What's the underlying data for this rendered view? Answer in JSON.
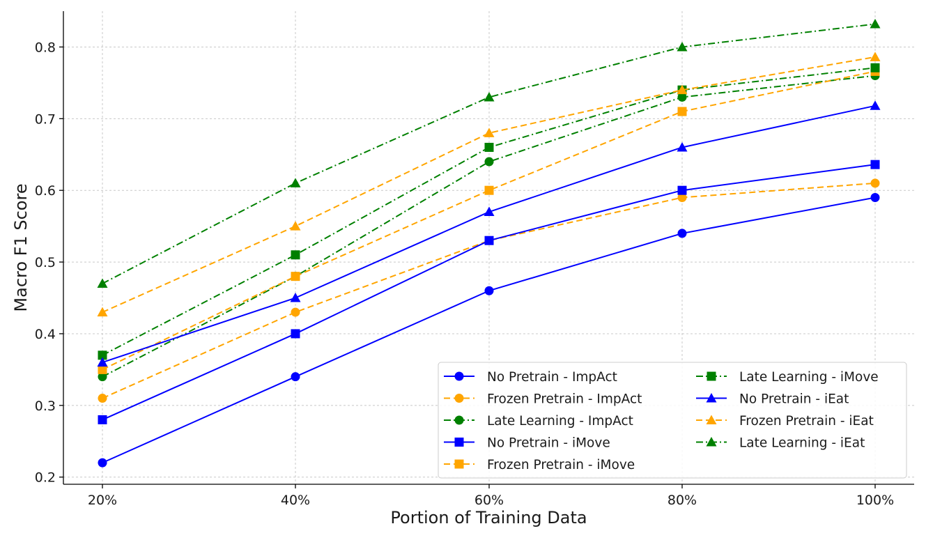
{
  "chart_data": {
    "type": "line",
    "title": "",
    "xlabel": "Portion of Training Data",
    "ylabel": "Macro F1 Score",
    "categories": [
      "20%",
      "40%",
      "60%",
      "80%",
      "100%"
    ],
    "ylim": [
      0.19,
      0.85
    ],
    "yticks": [
      0.2,
      0.3,
      0.4,
      0.5,
      0.6,
      0.7,
      0.8
    ],
    "ytick_labels": [
      "0.2",
      "0.3",
      "0.4",
      "0.5",
      "0.6",
      "0.7",
      "0.8"
    ],
    "grid": true,
    "legend_position": "lower-right",
    "series": [
      {
        "name": "No Pretrain - ImpAct",
        "color": "#0000ff",
        "marker": "circle",
        "dash": "solid",
        "values": [
          0.22,
          0.34,
          0.46,
          0.54,
          0.59
        ]
      },
      {
        "name": "Frozen Pretrain - ImpAct",
        "color": "#ffa500",
        "marker": "circle",
        "dash": "dashed",
        "values": [
          0.31,
          0.43,
          0.53,
          0.59,
          0.61
        ]
      },
      {
        "name": "Late Learning - ImpAct",
        "color": "#008000",
        "marker": "circle",
        "dash": "dashdot",
        "values": [
          0.34,
          0.48,
          0.64,
          0.73,
          0.76
        ]
      },
      {
        "name": "No Pretrain - iMove",
        "color": "#0000ff",
        "marker": "square",
        "dash": "solid",
        "values": [
          0.28,
          0.4,
          0.53,
          0.6,
          0.636
        ]
      },
      {
        "name": "Frozen Pretrain - iMove",
        "color": "#ffa500",
        "marker": "square",
        "dash": "dashed",
        "values": [
          0.35,
          0.48,
          0.6,
          0.71,
          0.766
        ]
      },
      {
        "name": "Late Learning - iMove",
        "color": "#008000",
        "marker": "square",
        "dash": "dashdot",
        "values": [
          0.37,
          0.51,
          0.66,
          0.74,
          0.771
        ]
      },
      {
        "name": "No Pretrain - iEat",
        "color": "#0000ff",
        "marker": "triangle",
        "dash": "solid",
        "values": [
          0.36,
          0.45,
          0.57,
          0.66,
          0.718
        ]
      },
      {
        "name": "Frozen Pretrain - iEat",
        "color": "#ffa500",
        "marker": "triangle",
        "dash": "dashed",
        "values": [
          0.43,
          0.55,
          0.68,
          0.74,
          0.786
        ]
      },
      {
        "name": "Late Learning - iEat",
        "color": "#008000",
        "marker": "triangle",
        "dash": "dashdot",
        "values": [
          0.47,
          0.61,
          0.73,
          0.8,
          0.832
        ]
      }
    ]
  }
}
